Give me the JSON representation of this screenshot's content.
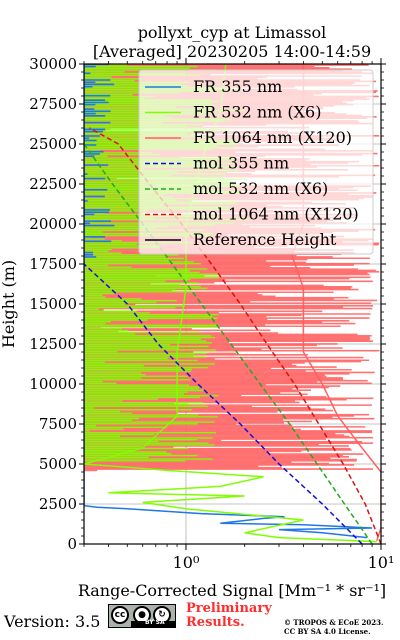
{
  "chart_data": {
    "type": "line",
    "title": "pollyxt_cyp at Limassol",
    "subtitle": "[Averaged] 20230205 14:00-14:59",
    "xlabel": "Range-Corrected Signal [Mm⁻¹ * sr⁻¹]",
    "ylabel": "Height (m)",
    "xscale": "log",
    "xlim": [
      0.3,
      10
    ],
    "ylim": [
      0,
      30000
    ],
    "x_ticks": [
      1,
      10
    ],
    "x_tick_labels": [
      "10⁰",
      "10¹"
    ],
    "y_ticks": [
      0,
      2500,
      5000,
      7500,
      10000,
      12500,
      15000,
      17500,
      20000,
      22500,
      25000,
      27500,
      30000
    ],
    "grid": true,
    "legend_position": "top-right",
    "series": [
      {
        "name": "FR 355 nm",
        "color": "#1f77e8",
        "style": "solid",
        "points": [
          [
            8.5,
            400
          ],
          [
            5.0,
            700
          ],
          [
            3.0,
            900
          ],
          [
            9.0,
            1000
          ],
          [
            4.0,
            1200
          ],
          [
            1.5,
            1300
          ],
          [
            2.5,
            1600
          ],
          [
            3.2,
            1700
          ],
          [
            1.2,
            1900
          ],
          [
            0.5,
            2200
          ],
          [
            0.35,
            2300
          ],
          [
            0.3,
            2400
          ],
          [
            0.3,
            30000
          ]
        ]
      },
      {
        "name": "FR 532 nm (X6)",
        "color": "#7fff00",
        "style": "solid",
        "points": [
          [
            9.5,
            150
          ],
          [
            3.0,
            400
          ],
          [
            2.0,
            700
          ],
          [
            4.0,
            1500
          ],
          [
            1.0,
            2200
          ],
          [
            0.6,
            2600
          ],
          [
            2.0,
            3000
          ],
          [
            0.4,
            3200
          ],
          [
            1.5,
            3600
          ],
          [
            2.5,
            4200
          ],
          [
            0.8,
            4600
          ],
          [
            0.5,
            4800
          ],
          [
            0.3,
            5000
          ],
          [
            0.6,
            6000
          ],
          [
            0.9,
            8000
          ],
          [
            0.9,
            12000
          ],
          [
            1.0,
            16000
          ],
          [
            1.0,
            20000
          ],
          [
            1.2,
            24000
          ],
          [
            1.5,
            27000
          ],
          [
            1.6,
            30000
          ]
        ]
      },
      {
        "name": "FR 1064 nm (X120)",
        "color": "#ff6060",
        "style": "solid",
        "points": [
          [
            9.5,
            200
          ],
          [
            10,
            1000
          ],
          [
            10,
            3000
          ],
          [
            10,
            4500
          ],
          [
            8,
            6000
          ],
          [
            6,
            8000
          ],
          [
            5,
            10000
          ],
          [
            4,
            12000
          ],
          [
            4,
            14000
          ],
          [
            4,
            16000
          ],
          [
            3.5,
            18000
          ],
          [
            4,
            20000
          ],
          [
            4,
            22000
          ],
          [
            4,
            24000
          ],
          [
            4,
            26000
          ],
          [
            4,
            28000
          ],
          [
            4,
            30000
          ]
        ]
      },
      {
        "name": "mol 355 nm",
        "color": "#1010d8",
        "style": "dashed",
        "points": [
          [
            8.0,
            0
          ],
          [
            5.0,
            2500
          ],
          [
            3.0,
            5000
          ],
          [
            1.9,
            7500
          ],
          [
            1.15,
            10000
          ],
          [
            0.72,
            12500
          ],
          [
            0.5,
            15000
          ],
          [
            0.3,
            17500
          ]
        ]
      },
      {
        "name": "mol 532 nm (X6)",
        "color": "#22aa22",
        "style": "dashed",
        "points": [
          [
            9.0,
            0
          ],
          [
            6.5,
            2500
          ],
          [
            4.7,
            5000
          ],
          [
            3.4,
            7500
          ],
          [
            2.4,
            10000
          ],
          [
            1.7,
            12500
          ],
          [
            1.2,
            15000
          ],
          [
            0.85,
            17500
          ],
          [
            0.6,
            20000
          ],
          [
            0.42,
            22500
          ],
          [
            0.3,
            25000
          ]
        ]
      },
      {
        "name": "mol 1064 nm (X120)",
        "color": "#dd1111",
        "style": "dashed",
        "points": [
          [
            10,
            0
          ],
          [
            8.3,
            2500
          ],
          [
            6.4,
            5000
          ],
          [
            4.8,
            7500
          ],
          [
            3.6,
            10000
          ],
          [
            2.6,
            12500
          ],
          [
            1.9,
            15000
          ],
          [
            1.35,
            17500
          ],
          [
            0.95,
            20000
          ],
          [
            0.65,
            22500
          ],
          [
            0.45,
            25000
          ],
          [
            0.32,
            26000
          ]
        ]
      },
      {
        "name": "Reference Height",
        "color": "#000000",
        "style": "solid",
        "points": []
      }
    ]
  },
  "footer": {
    "version": "Version: 3.5",
    "license_badge": {
      "left": "cc",
      "right": "BY SA"
    },
    "preliminary_line1": "Preliminary",
    "preliminary_line2": "Results.",
    "copyright_line1": "© TROPOS & ECoE 2023.",
    "copyright_line2": "CC BY SA 4.0 License."
  }
}
